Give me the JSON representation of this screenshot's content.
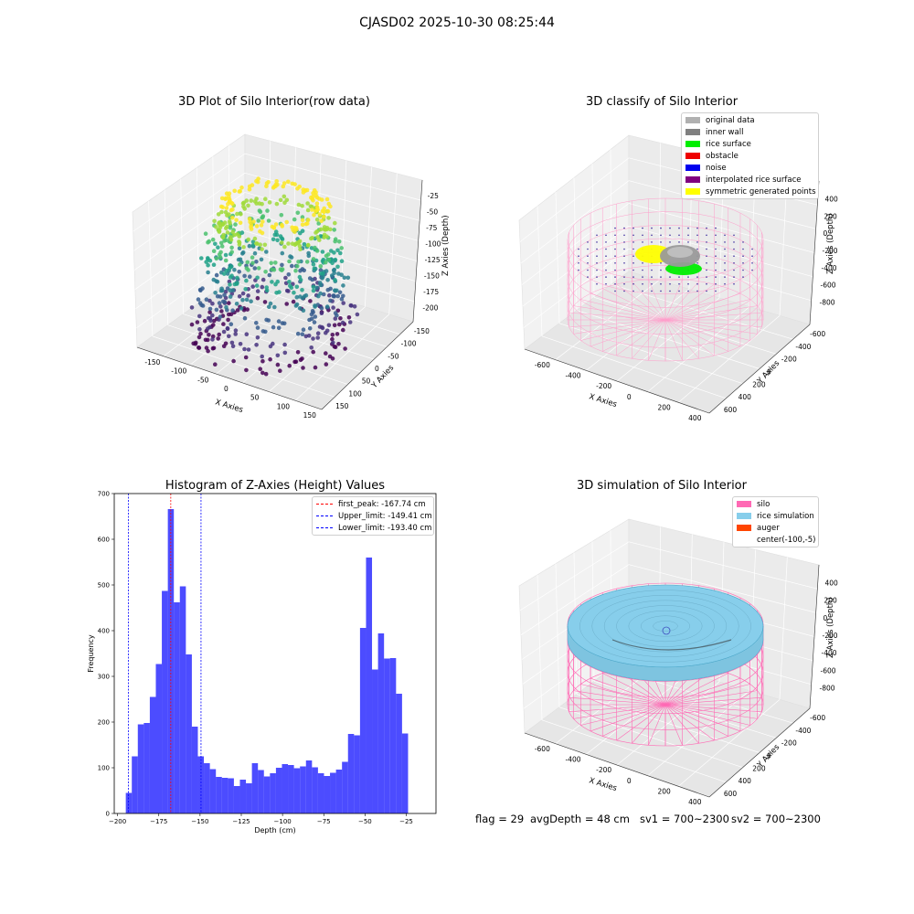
{
  "suptitle": "CJASD02 2025-10-30 08:25:44",
  "panel1": {
    "title": "3D Plot of Silo Interior(row data)",
    "xlabel": "X Axies",
    "ylabel": "Y Axies",
    "zlabel": "Z Axies (Depth)",
    "xticks": [
      "-150",
      "-100",
      "-50",
      "0",
      "50",
      "100",
      "150"
    ],
    "yticks": [
      "150",
      "100",
      "50",
      "0",
      "-50",
      "-100",
      "-150"
    ],
    "zticks": [
      "-25",
      "-50",
      "-75",
      "-100",
      "-125",
      "-150",
      "-175",
      "-200"
    ]
  },
  "panel2": {
    "title": "3D classify of Silo Interior",
    "xlabel": "X Axies",
    "ylabel": "Y Axies",
    "zlabel": "Z Axies (Depth)",
    "xticks": [
      "-600",
      "-400",
      "-200",
      "0",
      "200",
      "400"
    ],
    "yticks": [
      "600",
      "400",
      "200",
      "0",
      "-200",
      "-400",
      "-600"
    ],
    "zticks": [
      "400",
      "200",
      "0",
      "-200",
      "-400",
      "-600",
      "-800"
    ],
    "legend": [
      {
        "label": "original data",
        "color": "#b0b0b0"
      },
      {
        "label": "inner wall",
        "color": "#808080"
      },
      {
        "label": "rice surface",
        "color": "#00ee00"
      },
      {
        "label": "obstacle",
        "color": "#ee0000"
      },
      {
        "label": "noise",
        "color": "#0000ee"
      },
      {
        "label": "interpolated rice surface",
        "color": "#800080"
      },
      {
        "label": "symmetric generated points",
        "color": "#ffff00"
      }
    ]
  },
  "chart_data": {
    "type": "bar",
    "title": "Histogram of Z-Axies (Height) Values",
    "xlabel": "Depth (cm)",
    "ylabel": "Frequency",
    "xlim": [
      -202,
      -7
    ],
    "ylim": [
      0,
      700
    ],
    "xticks": [
      -200,
      -175,
      -150,
      -125,
      -100,
      -75,
      -50,
      -25
    ],
    "yticks": [
      0,
      100,
      200,
      300,
      400,
      500,
      600,
      700
    ],
    "bar_color": "#0000ff",
    "bin_start": -195,
    "bin_width": 3.64,
    "values": [
      45,
      125,
      195,
      198,
      255,
      327,
      487,
      666,
      462,
      497,
      348,
      190,
      125,
      110,
      97,
      80,
      78,
      77,
      60,
      74,
      66,
      110,
      95,
      81,
      88,
      100,
      108,
      106,
      99,
      103,
      116,
      101,
      88,
      82,
      89,
      96,
      113,
      174,
      171,
      406,
      560,
      315,
      394,
      339,
      340,
      262,
      175
    ],
    "vlines": [
      {
        "label": "first_peak: -167.74 cm",
        "x": -167.74,
        "color": "#ff0000"
      },
      {
        "label": "Upper_limit: -149.41 cm",
        "x": -149.41,
        "color": "#0000ff"
      },
      {
        "label": "Lower_limit: -193.40 cm",
        "x": -193.4,
        "color": "#0000ff"
      }
    ]
  },
  "panel4": {
    "title": "3D simulation of Silo Interior",
    "xlabel": "X Axies",
    "ylabel": "Y Axies",
    "zlabel": "Z Axies (Depth)",
    "xticks": [
      "-600",
      "-400",
      "-200",
      "0",
      "200",
      "400"
    ],
    "yticks": [
      "600",
      "400",
      "200",
      "0",
      "-200",
      "-400",
      "-600"
    ],
    "zticks": [
      "400",
      "200",
      "0",
      "-200",
      "-400",
      "-600",
      "-800"
    ],
    "legend": [
      {
        "label": "silo",
        "color": "#ff69b4"
      },
      {
        "label": "rice simulation",
        "color": "#87ceeb"
      },
      {
        "label": "auger",
        "color": "#ff4500"
      },
      {
        "label": "center(-100,-5)",
        "color": ""
      }
    ]
  },
  "footer": {
    "flag": "flag = 29",
    "avg": "avgDepth = 48 cm",
    "sv1": "sv1 = 700~2300",
    "sv2": "sv2 = 700~2300"
  }
}
